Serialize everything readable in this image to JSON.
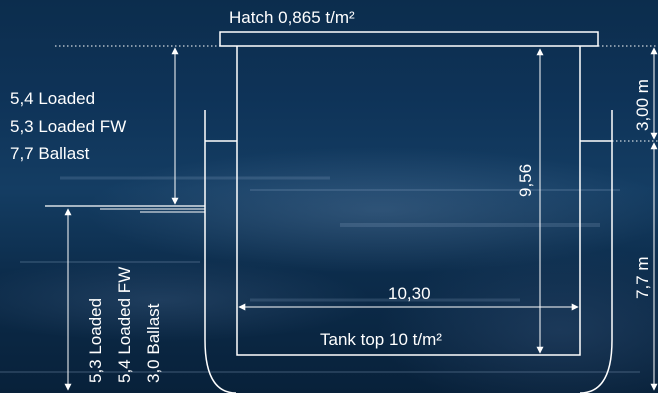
{
  "hatch_label": "Hatch 0,865 t/m²",
  "tank_top_label": "Tank top 10 t/m²",
  "width_label": "10,30",
  "height_label": "9,56",
  "coaming_height_label": "3,00 m",
  "side_height_label": "7,7 m",
  "deck_loads": [
    "5,4 Loaded",
    "5,3 Loaded FW",
    "7,7 Ballast"
  ],
  "draft_loads": [
    "5,3 Loaded",
    "5,4 Loaded FW",
    "3,0 Ballast"
  ],
  "colors": {
    "line": "#ffffff",
    "background": "#0e3358"
  }
}
